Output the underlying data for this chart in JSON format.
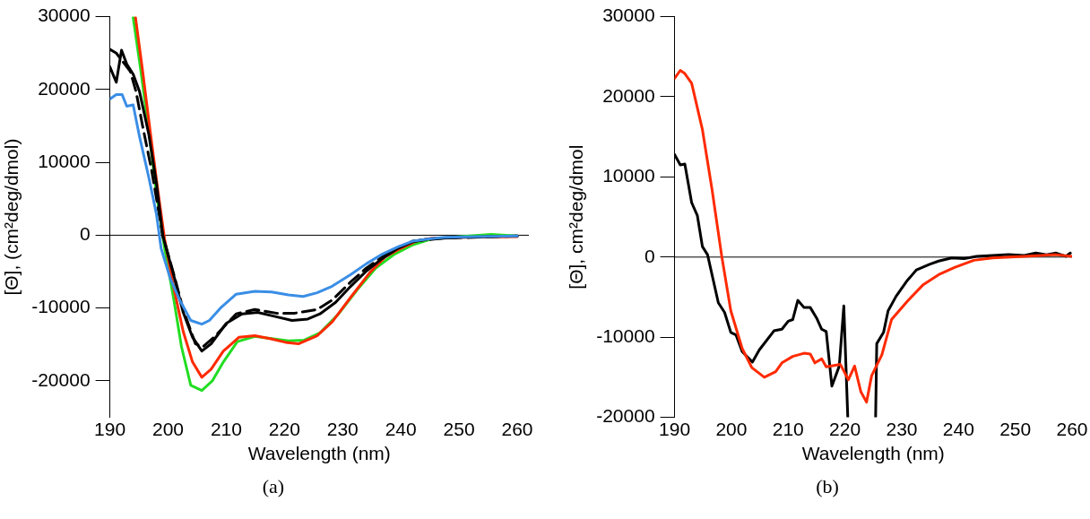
{
  "chart_data": [
    {
      "type": "line",
      "xlabel": "Wavelength (nm)",
      "ylabel": "[Θ], (cm²deg/dmol)",
      "annotations": [
        "(a)"
      ],
      "xlim": [
        190,
        262
      ],
      "xticks": [
        190,
        200,
        210,
        220,
        230,
        240,
        250,
        260
      ],
      "ylim": [
        -25000,
        30000
      ],
      "yticks": [
        -20000,
        -10000,
        0,
        10000,
        20000,
        30000
      ],
      "grid": false,
      "legend": false,
      "marker": "none",
      "ref_lines": [
        {
          "axis": "y",
          "value": 0,
          "color": "#000000"
        }
      ],
      "series": [
        {
          "color": "#3a8ee6",
          "line_style": "solid",
          "x": [
            190,
            191.1,
            192.1,
            192.9,
            194,
            195.1,
            196.7,
            198,
            198.8,
            200.4,
            202,
            203.9,
            205.8,
            207.1,
            209,
            211.7,
            214.9,
            217.8,
            220.7,
            223.2,
            225.6,
            228.2,
            231.4,
            234.1,
            236.8,
            239.5,
            242.1,
            244.8,
            247.5,
            252.8,
            260
          ],
          "values": [
            18700,
            19300,
            19300,
            17700,
            17900,
            13500,
            7900,
            2900,
            -1800,
            -6000,
            -8900,
            -11700,
            -12200,
            -11700,
            -10000,
            -8100,
            -7700,
            -7800,
            -8200,
            -8400,
            -7900,
            -7000,
            -5400,
            -3900,
            -2600,
            -1600,
            -800,
            -500,
            -300,
            -200,
            -100
          ]
        },
        {
          "color": "#000000",
          "line_style": "solid",
          "x": [
            190,
            191.1,
            192,
            192.9,
            194,
            195.1,
            196.7,
            198,
            199.1,
            201,
            202.6,
            204.2,
            205.8,
            207.4,
            210,
            212.7,
            215.4,
            218.1,
            221.3,
            224,
            226.1,
            228.8,
            231.4,
            234.1,
            236.8,
            239.5,
            242.1,
            244.8,
            250.2,
            260
          ],
          "values": [
            23100,
            21000,
            25400,
            23500,
            22100,
            19700,
            13800,
            7100,
            -100,
            -5600,
            -10600,
            -14000,
            -15900,
            -14900,
            -12100,
            -10800,
            -10600,
            -11100,
            -11700,
            -11500,
            -10800,
            -9200,
            -7000,
            -4900,
            -3200,
            -1800,
            -900,
            -500,
            -300,
            -100
          ]
        },
        {
          "color": "#000000",
          "line_style": "dashed",
          "x": [
            190,
            191.1,
            193.5,
            194.5,
            195.6,
            197.2,
            199.1,
            201,
            202.6,
            204.7,
            206,
            207.9,
            211.7,
            214.9,
            218.6,
            221.8,
            225.6,
            228.2,
            231.4,
            234.1,
            236.8,
            239.5,
            242.1,
            247.5,
            260
          ],
          "values": [
            25500,
            25000,
            22500,
            19700,
            15100,
            8800,
            -100,
            -5400,
            -10200,
            -14900,
            -15300,
            -14000,
            -10800,
            -10200,
            -10700,
            -10700,
            -10200,
            -8900,
            -6400,
            -4500,
            -3000,
            -1700,
            -800,
            -400,
            -100
          ]
        },
        {
          "color": "#ff2a00",
          "line_style": "solid",
          "x": [
            194.4,
            195.6,
            197,
            198.3,
            199.4,
            201,
            202.6,
            204.2,
            205.8,
            207.4,
            209.5,
            212.2,
            214.9,
            217.5,
            220.2,
            222.4,
            225.6,
            228.2,
            231.4,
            234.7,
            237.3,
            240,
            242.7,
            245.3,
            250.2,
            260
          ],
          "values": [
            29900,
            22700,
            13800,
            5800,
            -500,
            -7300,
            -13200,
            -17400,
            -19500,
            -18400,
            -15900,
            -14000,
            -13800,
            -14200,
            -14700,
            -14900,
            -13800,
            -11900,
            -8500,
            -5100,
            -3000,
            -1800,
            -800,
            -400,
            -300,
            -200
          ]
        },
        {
          "color": "#22dd22",
          "line_style": "solid",
          "x": [
            194,
            195.3,
            196.7,
            198,
            199.4,
            201,
            202.3,
            203.9,
            205.8,
            207.6,
            209.5,
            211.9,
            214.9,
            217.8,
            220.7,
            223.4,
            226.1,
            229.3,
            232.5,
            235.7,
            238.9,
            242.1,
            245.3,
            250.2,
            255.5,
            260
          ],
          "values": [
            29900,
            22700,
            14300,
            5800,
            -1800,
            -8900,
            -15300,
            -20600,
            -21300,
            -20000,
            -17400,
            -14600,
            -13900,
            -14200,
            -14500,
            -14400,
            -13400,
            -10800,
            -7500,
            -4500,
            -2600,
            -1300,
            -500,
            -200,
            100,
            -100
          ]
        }
      ]
    },
    {
      "type": "line",
      "xlabel": "Wavelength (nm)",
      "ylabel": "[Θ], cm²deg/dmol",
      "annotations": [
        "(b)"
      ],
      "xlim": [
        190,
        260
      ],
      "xticks": [
        190,
        200,
        210,
        220,
        230,
        240,
        250,
        260
      ],
      "ylim": [
        -20000,
        30000
      ],
      "yticks": [
        -20000,
        -10000,
        0,
        10000,
        20000,
        30000
      ],
      "grid": false,
      "legend": false,
      "marker": "none",
      "ref_lines": [
        {
          "axis": "y",
          "value": 0,
          "color": "#000000"
        }
      ],
      "series": [
        {
          "color": "#ff2a00",
          "line_style": "solid",
          "x": [
            190,
            191,
            191.8,
            193,
            194.9,
            196.6,
            198.3,
            199.9,
            201.9,
            203.6,
            205.8,
            207.8,
            208.9,
            210.8,
            212.8,
            213.9,
            214.7,
            215.9,
            216.7,
            219.2,
            220.6,
            221.7,
            222.8,
            223.8,
            224.7,
            226.5,
            228.2,
            231,
            233.7,
            236.5,
            239.3,
            242.7,
            246,
            251.6,
            257.2,
            260
          ],
          "values": [
            22300,
            23300,
            22900,
            21700,
            15900,
            8400,
            100,
            -6700,
            -11400,
            -13800,
            -15000,
            -14300,
            -13200,
            -12400,
            -12000,
            -12100,
            -13200,
            -12700,
            -13700,
            -13400,
            -15300,
            -13600,
            -16800,
            -18100,
            -14800,
            -12200,
            -7800,
            -5500,
            -3500,
            -2200,
            -1300,
            -400,
            -100,
            100,
            300,
            100
          ]
        },
        {
          "color": "#000000",
          "line_style": "solid",
          "x": [
            190,
            191,
            191.8,
            193,
            194,
            194.9,
            195.8,
            197.7,
            198.8,
            199.9,
            200.8,
            201.9,
            203.7,
            204.9,
            207.5,
            208.9,
            210,
            210.8,
            211.7,
            212.8,
            213.9,
            215,
            215.9,
            216.7,
            217.7,
            219,
            219.8,
            220.5,
            223,
            225.4,
            225.6,
            226.8,
            227.6,
            229,
            231,
            232.6,
            234.9,
            236.5,
            238.8,
            241,
            243.2,
            246,
            248.8,
            251.6,
            253.6,
            255.5,
            257.2,
            258.9,
            259.7
          ],
          "values": [
            12800,
            11500,
            11600,
            6800,
            5200,
            1300,
            300,
            -5700,
            -6900,
            -9400,
            -9700,
            -11800,
            -13100,
            -11600,
            -9200,
            -9000,
            -8000,
            -7800,
            -5400,
            -6300,
            -6300,
            -7600,
            -9000,
            -9300,
            -16100,
            -13600,
            -6100,
            -20000,
            null,
            -20000,
            -10800,
            -9400,
            -6700,
            -4900,
            -2900,
            -1600,
            -900,
            -500,
            -100,
            -200,
            100,
            200,
            300,
            200,
            500,
            300,
            500,
            100,
            500
          ]
        }
      ]
    }
  ]
}
